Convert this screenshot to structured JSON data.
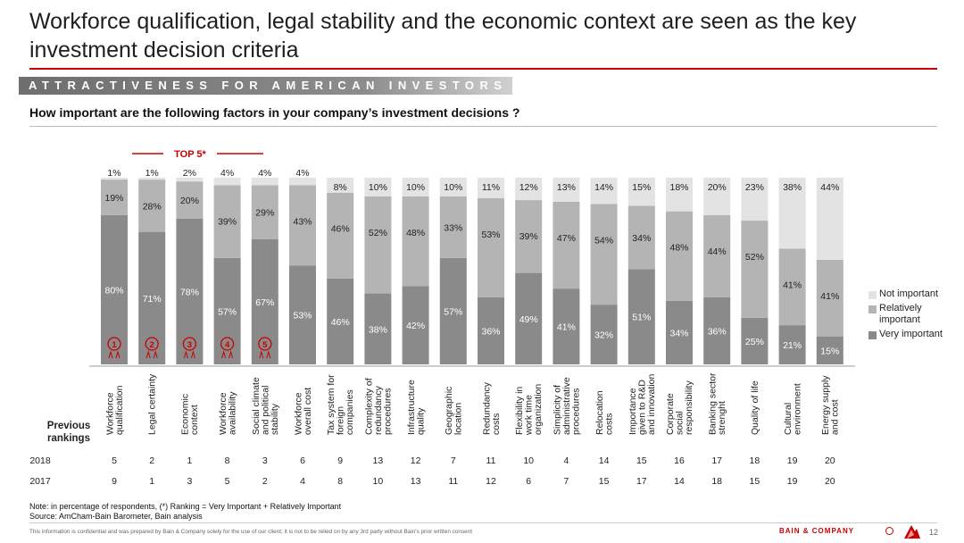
{
  "title": "Workforce qualification, legal stability and the economic context are seen as the key investment decision criteria",
  "section_banner": "ATTRACTIVENESS FOR AMERICAN INVESTORS",
  "question": "How important are the following factors in your company’s investment decisions ?",
  "top5_label": "TOP 5*",
  "previous_rankings_label": "Previous rankings",
  "legend": [
    {
      "label": "Not important",
      "color": "#e3e3e3"
    },
    {
      "label": "Relatively important",
      "color": "#b4b4b4"
    },
    {
      "label": "Very important",
      "color": "#8a8a8a"
    }
  ],
  "chart_data": {
    "type": "bar",
    "stacked": true,
    "unit": "%",
    "categories": [
      [
        "Workforce",
        "qualification"
      ],
      [
        "Legal certainty"
      ],
      [
        "Economic",
        "context"
      ],
      [
        "Workforce",
        "availability"
      ],
      [
        "Social climate",
        "and political",
        "stability"
      ],
      [
        "Workforce",
        "overall cost"
      ],
      [
        "Tax system for",
        "foreign",
        "companies"
      ],
      [
        "Complexity of",
        "redundancy",
        "procedures"
      ],
      [
        "Infrastructure",
        "quality"
      ],
      [
        "Geographic",
        "location"
      ],
      [
        "Redundancy",
        "costs"
      ],
      [
        "Flexibility in",
        "work time",
        "organization"
      ],
      [
        "Simplicity of",
        "administrative",
        "procedures"
      ],
      [
        "Relocation",
        "costs"
      ],
      [
        "Importance",
        "given to R&D",
        "and innovation"
      ],
      [
        "Corporate",
        "social",
        "responsibility"
      ],
      [
        "Banking sector",
        "strenght"
      ],
      [
        "Quality of life"
      ],
      [
        "Cultural",
        "environment"
      ],
      [
        "Energy supply",
        "and cost"
      ]
    ],
    "series": [
      {
        "name": "Very important",
        "color": "#8a8a8a",
        "values": [
          80,
          71,
          78,
          57,
          67,
          53,
          46,
          38,
          42,
          57,
          36,
          49,
          41,
          32,
          51,
          34,
          36,
          25,
          21,
          15
        ]
      },
      {
        "name": "Relatively important",
        "color": "#b4b4b4",
        "values": [
          19,
          28,
          20,
          39,
          29,
          43,
          46,
          52,
          48,
          33,
          53,
          39,
          47,
          54,
          34,
          48,
          44,
          52,
          41,
          41
        ]
      },
      {
        "name": "Not important",
        "color": "#e3e3e3",
        "values": [
          1,
          1,
          2,
          4,
          4,
          4,
          8,
          10,
          10,
          10,
          11,
          12,
          13,
          14,
          15,
          18,
          20,
          23,
          38,
          44
        ]
      }
    ],
    "labels_very": [
      "80%",
      "71%",
      "78%",
      "57%",
      "67%",
      "53%",
      "46%",
      "38%",
      "42%",
      "57%",
      "36%",
      "49%",
      "41%",
      "32%",
      "51%",
      "34%",
      "36%",
      "25%",
      "21%",
      "15%"
    ],
    "labels_relatively": [
      "19%",
      "28%",
      "20%",
      "39%",
      "29%",
      "43%",
      "46%",
      "52%",
      "48%",
      "33%",
      "53%",
      "39%",
      "47%",
      "54%",
      "34%",
      "48%",
      "44%",
      "52%",
      "41%",
      "41%"
    ],
    "labels_not": [
      "1%",
      "1%",
      "2%",
      "4%",
      "4%",
      "4%",
      "8%",
      "10%",
      "10%",
      "10%",
      "11%",
      "12%",
      "13%",
      "14%",
      "15%",
      "18%",
      "20%",
      "23%",
      "38%",
      "44%"
    ],
    "top5_ranks": [
      "1",
      "2",
      "3",
      "4",
      "5"
    ],
    "rankings": [
      {
        "year": "2018",
        "values": [
          "5",
          "2",
          "1",
          "8",
          "3",
          "6",
          "9",
          "13",
          "12",
          "7",
          "11",
          "10",
          "4",
          "14",
          "15",
          "16",
          "17",
          "18",
          "19",
          "20"
        ]
      },
      {
        "year": "2017",
        "values": [
          "9",
          "1",
          "3",
          "5",
          "2",
          "4",
          "8",
          "10",
          "13",
          "11",
          "12",
          "6",
          "7",
          "15",
          "17",
          "14",
          "18",
          "15",
          "19",
          "20"
        ]
      }
    ],
    "ylim": [
      0,
      100
    ]
  },
  "note": "Note: in percentage of respondents, (*) Ranking = Very Important + Relatively Important",
  "source": "Source: AmCham-Bain Barometer, Bain analysis",
  "footer": "This information is confidential and was prepared by Bain & Company solely for the use of our client; it is not to be relied on by any 3rd party without Bain's prior written consent",
  "brand": "BAIN & COMPANY",
  "page_number": "12"
}
